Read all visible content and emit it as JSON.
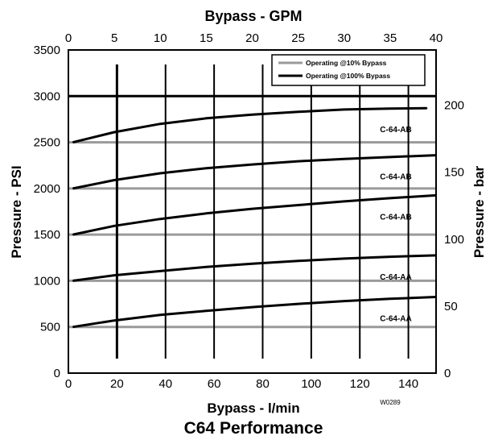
{
  "chart_data": {
    "type": "line",
    "title": "C64 Performance",
    "code": "W0289",
    "axes": {
      "bottom": {
        "label": "Bypass - l/min",
        "min": 0,
        "max": 151.4,
        "ticks": [
          0,
          20,
          40,
          60,
          80,
          100,
          120,
          140
        ]
      },
      "top": {
        "label": "Bypass - GPM",
        "min": 0,
        "max": 40,
        "ticks": [
          0,
          5,
          10,
          15,
          20,
          25,
          30,
          35,
          40
        ]
      },
      "left": {
        "label": "Pressure - PSI",
        "min": 0,
        "max": 3500,
        "ticks": [
          0,
          500,
          1000,
          1500,
          2000,
          2500,
          3000,
          3500
        ]
      },
      "right": {
        "label": "Pressure - bar",
        "min": 0,
        "max": 241.3,
        "ticks": [
          0,
          50,
          100,
          150,
          200
        ]
      }
    },
    "legend": {
      "position": "top-right",
      "entries": [
        {
          "label": "Operating @10% Bypass",
          "color": "#9a9a9a"
        },
        {
          "label": "Operating @100% Bypass",
          "color": "#000000"
        }
      ]
    },
    "series": [
      {
        "label": "C-64-AB",
        "p10": 2500,
        "x": [
          0.5,
          5,
          10,
          15,
          20,
          25,
          30,
          35,
          39
        ],
        "y": [
          2500,
          2610,
          2700,
          2760,
          2800,
          2830,
          2855,
          2865,
          2870
        ]
      },
      {
        "label": "C-64-AB",
        "p10": 2000,
        "x": [
          0.5,
          5,
          10,
          15,
          20,
          25,
          30,
          35,
          40
        ],
        "y": [
          2000,
          2090,
          2165,
          2220,
          2260,
          2295,
          2320,
          2340,
          2360
        ]
      },
      {
        "label": "C-64-AB",
        "p10": 1500,
        "x": [
          0.5,
          5,
          10,
          15,
          20,
          25,
          30,
          35,
          40
        ],
        "y": [
          1500,
          1595,
          1670,
          1730,
          1780,
          1820,
          1860,
          1895,
          1925
        ]
      },
      {
        "label": "C-64-AA",
        "p10": 1000,
        "x": [
          0.5,
          5,
          10,
          15,
          20,
          25,
          30,
          35,
          40
        ],
        "y": [
          1000,
          1060,
          1105,
          1150,
          1185,
          1215,
          1240,
          1260,
          1275
        ]
      },
      {
        "label": "C-64-AA",
        "p10": 500,
        "x": [
          0.5,
          5,
          10,
          15,
          20,
          25,
          30,
          35,
          40
        ],
        "y": [
          500,
          570,
          630,
          675,
          715,
          750,
          780,
          805,
          825
        ]
      }
    ],
    "grid": true
  }
}
